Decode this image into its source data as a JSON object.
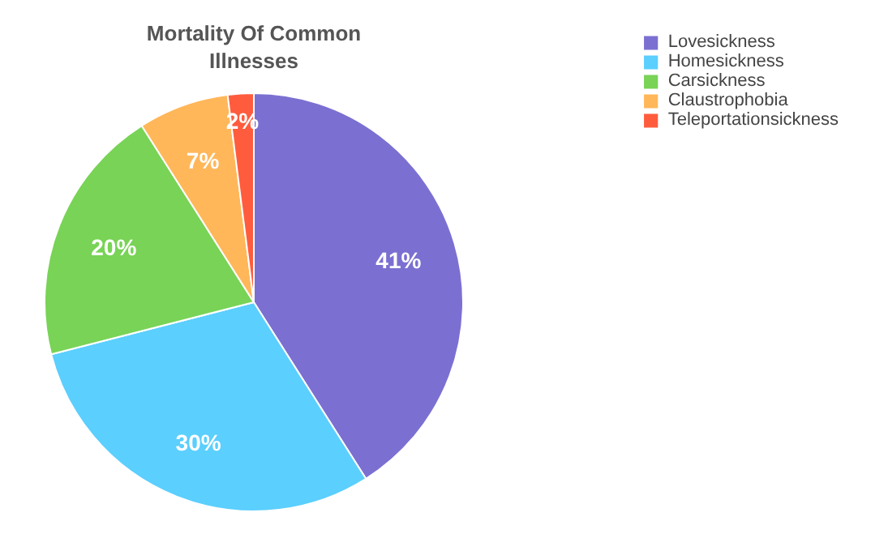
{
  "chart_data": {
    "type": "pie",
    "title": "Mortality Of Common Illnesses",
    "categories": [
      "Lovesickness",
      "Homesickness",
      "Carsickness",
      "Claustrophobia",
      "Teleportationsickness"
    ],
    "values": [
      41,
      30,
      20,
      7,
      2
    ],
    "colors": [
      "#7b70d1",
      "#5bcffe",
      "#78d356",
      "#ffb75a",
      "#ff5c3d"
    ],
    "value_labels": [
      "41%",
      "30%",
      "20%",
      "7%",
      "2%"
    ],
    "legend": "top right"
  }
}
